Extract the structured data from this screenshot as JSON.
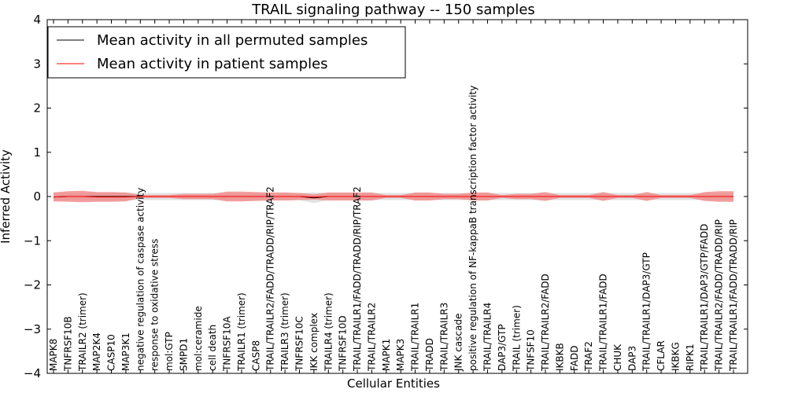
{
  "chart_data": {
    "type": "line",
    "title": "TRAIL signaling pathway -- 150 samples",
    "xlabel": "Cellular Entities",
    "ylabel": "Inferred Activity",
    "ylim": [
      -4,
      4
    ],
    "yticks": [
      -4,
      -3,
      -2,
      -1,
      0,
      1,
      2,
      3,
      4
    ],
    "ytick_labels": [
      "−4",
      "−3",
      "−2",
      "−1",
      "0",
      "1",
      "2",
      "3",
      "4"
    ],
    "grid": false,
    "legend_position": "top-left",
    "categories": [
      "MAPK8",
      "TNFRSF10B",
      "TRAILR2 (trimer)",
      "MAP2K4",
      "CASP10",
      "MAP3K1",
      "negative regulation of caspase activity",
      "response to oxidative stress",
      "mol:GTP",
      "SMPD1",
      "mol:ceramide",
      "cell death",
      "TNFRSF10A",
      "TRAILR1 (trimer)",
      "CASP8",
      "TRAIL/TRAILR2/FADD/TRADD/RIP/TRAF2",
      "TRAILR3 (trimer)",
      "TNFRSF10C",
      "IKK complex",
      "TRAILR4 (trimer)",
      "TNFRSF10D",
      "TRAIL/TRAILR1/FADD/TRADD/RIP/TRAF2",
      "TRAIL/TRAILR2",
      "MAPK1",
      "MAPK3",
      "TRAIL/TRAILR1",
      "TRADD",
      "TRAIL/TRAILR3",
      "JNK cascade",
      "positive regulation of NF-kappaB transcription factor activity",
      "TRAIL/TRAILR4",
      "DAP3/GTP",
      "TRAIL (trimer)",
      "TNFSF10",
      "TRAIL/TRAILR2/FADD",
      "IKBKB",
      "FADD",
      "TRAF2",
      "TRAIL/TRAILR1/FADD",
      "CHUK",
      "DAP3",
      "TRAIL/TRAILR1/DAP3/GTP",
      "CFLAR",
      "IKBKG",
      "RIPK1",
      "TRAIL/TRAILR1/DAP3/GTP/FADD",
      "TRAIL/TRAILR2/FADD/TRADD/RIP",
      "TRAIL/TRAILR1/FADD/TRADD/RIP"
    ],
    "series": [
      {
        "name": "Mean activity in all permuted samples",
        "color": "#000000",
        "band_color": "#c8c8c8",
        "values": [
          -0.01,
          0,
          0,
          0,
          0,
          0,
          0,
          0,
          0,
          0,
          0,
          0,
          0,
          0,
          0,
          0,
          0,
          0,
          -0.03,
          0,
          0,
          0,
          0,
          0,
          0,
          0,
          0,
          0,
          0,
          0,
          0,
          0,
          0,
          0,
          0,
          0,
          0,
          0,
          0,
          0,
          0,
          0,
          0,
          0,
          0,
          0,
          0,
          0
        ],
        "band_half_width": [
          0.1,
          0.08,
          0.08,
          0.09,
          0.09,
          0.09,
          0.08,
          0.08,
          0.08,
          0.08,
          0.08,
          0.08,
          0.08,
          0.08,
          0.08,
          0.08,
          0.08,
          0.08,
          0.12,
          0.08,
          0.08,
          0.08,
          0.08,
          0.08,
          0.08,
          0.08,
          0.08,
          0.08,
          0.08,
          0.08,
          0.08,
          0.08,
          0.08,
          0.08,
          0.08,
          0.08,
          0.08,
          0.08,
          0.08,
          0.08,
          0.08,
          0.08,
          0.08,
          0.08,
          0.08,
          0.08,
          0.08,
          0.08
        ]
      },
      {
        "name": "Mean activity in patient samples",
        "color": "#ff0000",
        "band_color": "#f08080",
        "values": [
          -0.01,
          0,
          0,
          -0.01,
          -0.01,
          -0.01,
          0,
          0,
          0,
          0,
          0,
          0,
          0,
          0,
          0,
          0,
          0,
          0,
          -0.01,
          0,
          0,
          0,
          0,
          0,
          0,
          0,
          0,
          0,
          0,
          0,
          0,
          0,
          0,
          0,
          0,
          0,
          0,
          0,
          0,
          0,
          0,
          0,
          0,
          0,
          0,
          0,
          0,
          0
        ],
        "band_half_width": [
          0.1,
          0.12,
          0.13,
          0.11,
          0.11,
          0.1,
          0.03,
          0.03,
          0.03,
          0.06,
          0.06,
          0.06,
          0.11,
          0.11,
          0.1,
          0.09,
          0.09,
          0.08,
          0.06,
          0.09,
          0.09,
          0.09,
          0.09,
          0.03,
          0.03,
          0.09,
          0.09,
          0.06,
          0.06,
          0.09,
          0.09,
          0.03,
          0.06,
          0.06,
          0.1,
          0.03,
          0.03,
          0.03,
          0.1,
          0.03,
          0.03,
          0.1,
          0.03,
          0.03,
          0.03,
          0.1,
          0.12,
          0.12
        ]
      }
    ]
  }
}
